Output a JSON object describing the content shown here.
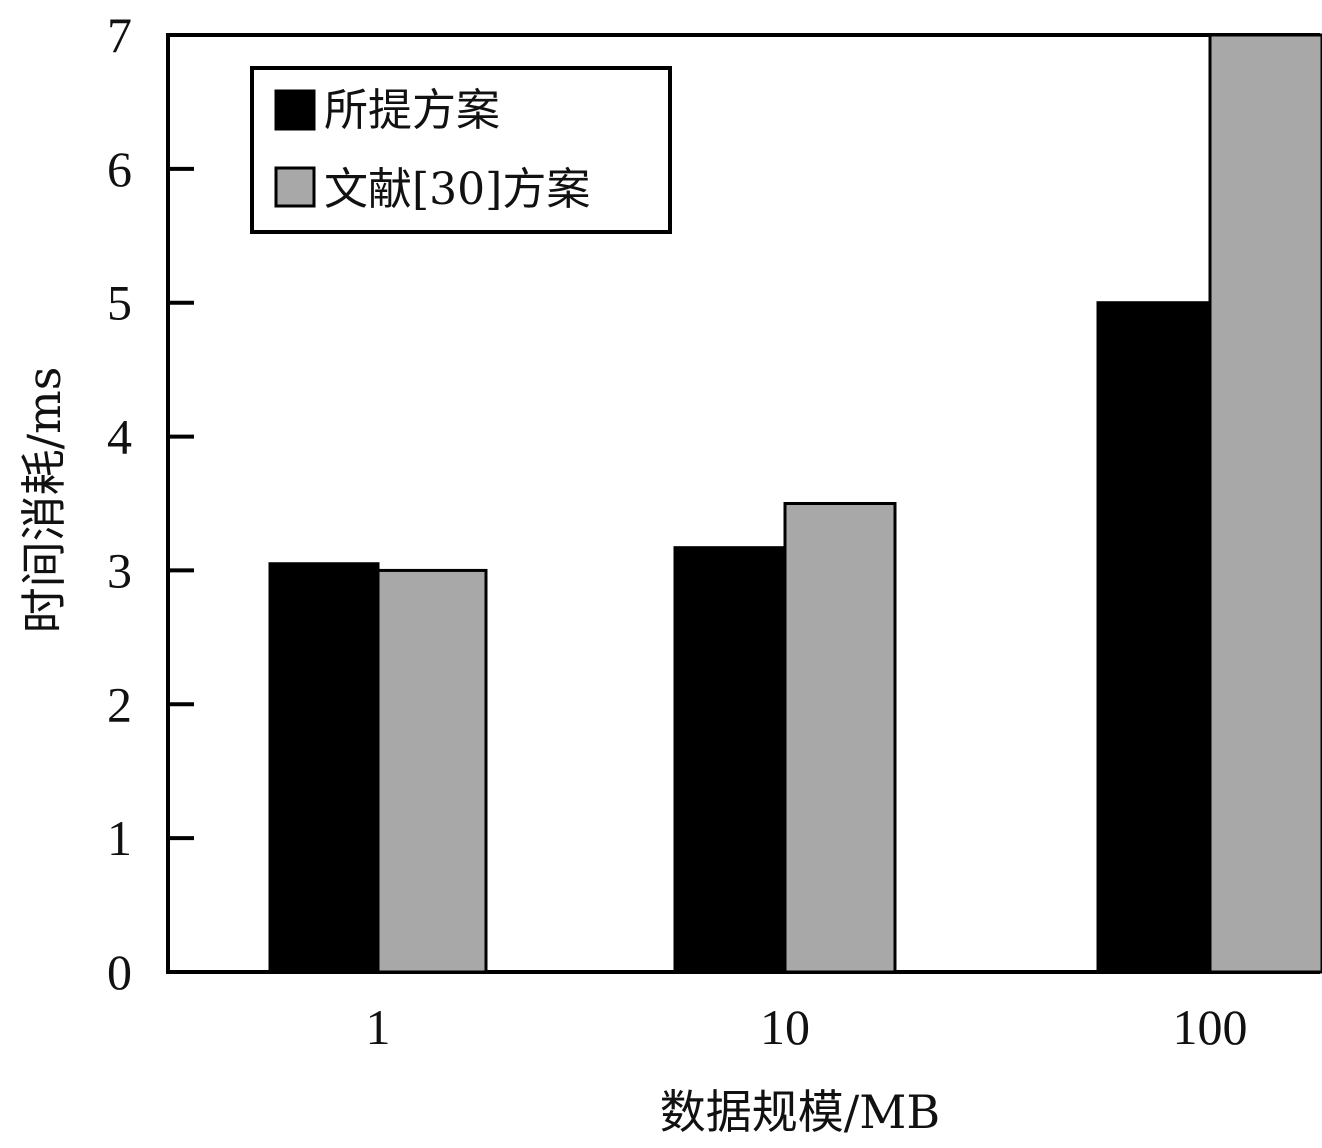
{
  "chart_data": {
    "type": "bar",
    "categories": [
      "1",
      "10",
      "100"
    ],
    "series": [
      {
        "name": "所提方案",
        "values": [
          3.05,
          3.17,
          5.0
        ],
        "color": "#000000"
      },
      {
        "name": "文献[30]方案",
        "values": [
          3.0,
          3.5,
          7.0
        ],
        "color": "#a8a8a8"
      }
    ],
    "xlabel": "数据规模/MB",
    "ylabel": "时间消耗/ms",
    "ylim": [
      0,
      7
    ],
    "yticks": [
      "0",
      "1",
      "2",
      "3",
      "4",
      "5",
      "6",
      "7"
    ],
    "grid": false,
    "legend_position": "top-left"
  }
}
